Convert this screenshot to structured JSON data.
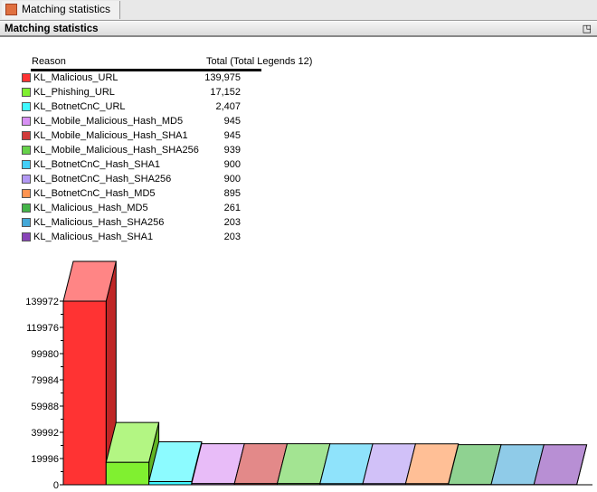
{
  "tab": {
    "label": "Matching statistics",
    "icon": "chart-icon"
  },
  "panel": {
    "title": "Matching statistics",
    "restore_icon": "restore-window-icon"
  },
  "legend": {
    "col_reason": "Reason",
    "col_total": "Total (Total Legends 12)"
  },
  "chart_data": {
    "type": "bar",
    "style": "3d",
    "categories": [
      "KL_Malicious_URL",
      "KL_Phishing_URL",
      "KL_BotnetCnC_URL",
      "KL_Mobile_Malicious_Hash_MD5",
      "KL_Mobile_Malicious_Hash_SHA1",
      "KL_Mobile_Malicious_Hash_SHA256",
      "KL_BotnetCnC_Hash_SHA1",
      "KL_BotnetCnC_Hash_SHA256",
      "KL_BotnetCnC_Hash_MD5",
      "KL_Malicious_Hash_MD5",
      "KL_Malicious_Hash_SHA256",
      "KL_Malicious_Hash_SHA1"
    ],
    "values": [
      139975,
      17152,
      2407,
      945,
      945,
      939,
      900,
      900,
      895,
      261,
      203,
      203
    ],
    "value_labels": [
      "139,975",
      "17,152",
      "2,407",
      "945",
      "945",
      "939",
      "900",
      "900",
      "895",
      "261",
      "203",
      "203"
    ],
    "colors": [
      "#ff3333",
      "#80f030",
      "#40f8ff",
      "#d890f4",
      "#d03a3a",
      "#66d24a",
      "#44d0f8",
      "#b298f4",
      "#ff9450",
      "#44b448",
      "#44a8d8",
      "#8844b8"
    ],
    "y_ticks": [
      "0",
      "19996",
      "39992",
      "59988",
      "79984",
      "99980",
      "119976",
      "139972"
    ],
    "ylim": [
      0,
      139972
    ],
    "legend_position": "top-left"
  }
}
